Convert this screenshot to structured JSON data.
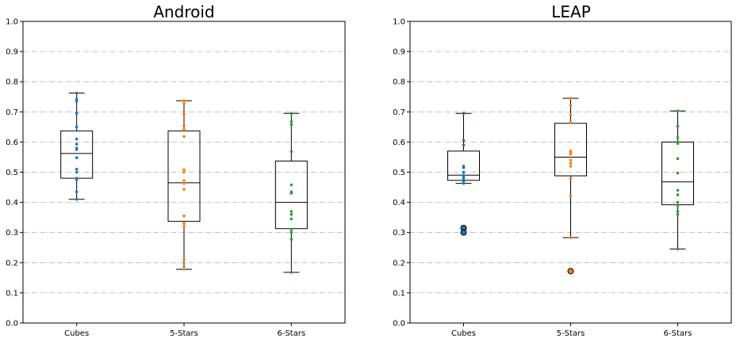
{
  "chart_data": [
    {
      "type": "box",
      "title": "Android",
      "categories": [
        "Cubes",
        "5-Stars",
        "6-Stars"
      ],
      "ylim": [
        0,
        1.0
      ],
      "yticks": [
        "0.0",
        "0.1",
        "0.2",
        "0.3",
        "0.4",
        "0.5",
        "0.6",
        "0.7",
        "0.8",
        "0.9",
        "1.0"
      ],
      "grid": "horizontal dash-dot",
      "boxes": [
        {
          "category": "Cubes",
          "whisker_low": 0.41,
          "q1": 0.48,
          "median": 0.562,
          "q3": 0.637,
          "whisker_high": 0.762,
          "outliers": [],
          "points": [
            0.762,
            0.742,
            0.735,
            0.695,
            0.65,
            0.61,
            0.593,
            0.58,
            0.575,
            0.548,
            0.51,
            0.5,
            0.48,
            0.475,
            0.435,
            0.41
          ]
        },
        {
          "category": "5-Stars",
          "whisker_low": 0.178,
          "q1": 0.337,
          "median": 0.465,
          "q3": 0.637,
          "whisker_high": 0.737,
          "outliers": [],
          "points": [
            0.737,
            0.728,
            0.692,
            0.655,
            0.642,
            0.618,
            0.508,
            0.5,
            0.472,
            0.463,
            0.443,
            0.355,
            0.33,
            0.318,
            0.21,
            0.178
          ]
        },
        {
          "category": "6-Stars",
          "whisker_low": 0.168,
          "q1": 0.313,
          "median": 0.4,
          "q3": 0.537,
          "whisker_high": 0.695,
          "outliers": [],
          "points": [
            0.695,
            0.668,
            0.658,
            0.568,
            0.458,
            0.435,
            0.43,
            0.37,
            0.36,
            0.345,
            0.31,
            0.3,
            0.278,
            0.168
          ]
        }
      ],
      "colors": [
        "#1f77b4",
        "#ff7f0e",
        "#2ca02c"
      ]
    },
    {
      "type": "box",
      "title": "LEAP",
      "categories": [
        "Cubes",
        "5-Stars",
        "6-Stars"
      ],
      "ylim": [
        0,
        1.0
      ],
      "yticks": [
        "0.0",
        "0.1",
        "0.2",
        "0.3",
        "0.4",
        "0.5",
        "0.6",
        "0.7",
        "0.8",
        "0.9",
        "1.0"
      ],
      "grid": "horizontal dash-dot",
      "boxes": [
        {
          "category": "Cubes",
          "whisker_low": 0.463,
          "q1": 0.473,
          "median": 0.49,
          "q3": 0.57,
          "whisker_high": 0.695,
          "outliers": [
            0.315,
            0.3
          ],
          "points": [
            0.695,
            0.605,
            0.59,
            0.52,
            0.515,
            0.5,
            0.49,
            0.485,
            0.478,
            0.47,
            0.463
          ]
        },
        {
          "category": "5-Stars",
          "whisker_low": 0.283,
          "q1": 0.488,
          "median": 0.55,
          "q3": 0.662,
          "whisker_high": 0.745,
          "outliers": [
            0.172
          ],
          "points": [
            0.745,
            0.722,
            0.69,
            0.665,
            0.57,
            0.565,
            0.56,
            0.54,
            0.53,
            0.52,
            0.48,
            0.42,
            0.283
          ]
        },
        {
          "category": "6-Stars",
          "whisker_low": 0.245,
          "q1": 0.392,
          "median": 0.468,
          "q3": 0.6,
          "whisker_high": 0.703,
          "outliers": [],
          "points": [
            0.703,
            0.652,
            0.615,
            0.6,
            0.595,
            0.545,
            0.497,
            0.44,
            0.425,
            0.4,
            0.39,
            0.37,
            0.36,
            0.245
          ]
        }
      ],
      "colors": [
        "#1f77b4",
        "#ff7f0e",
        "#2ca02c"
      ]
    }
  ]
}
